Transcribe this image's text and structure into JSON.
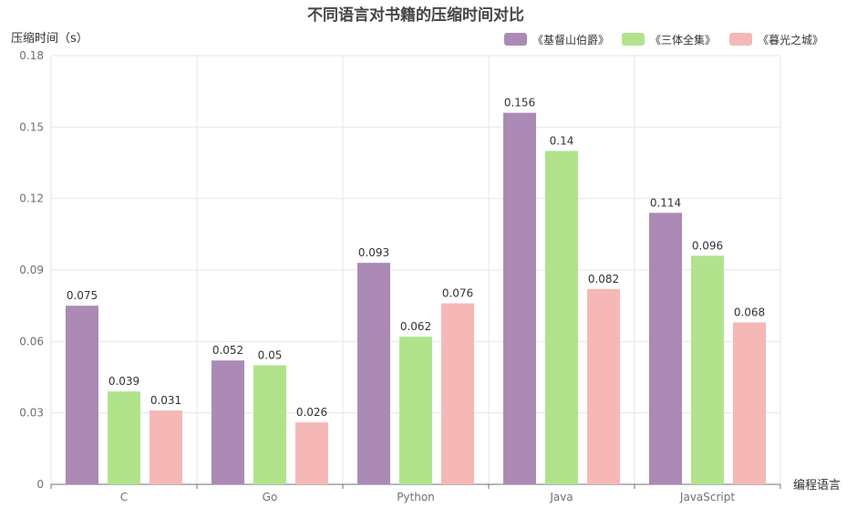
{
  "chart_data": {
    "type": "bar",
    "title": "不同语言对书籍的压缩时间对比",
    "ylabel": "压缩时间（s）",
    "xlabel": "编程语言",
    "categories": [
      "C",
      "Go",
      "Python",
      "Java",
      "JavaScript"
    ],
    "series": [
      {
        "name": "《基督山伯爵》",
        "color": "#ab8ab5",
        "values": [
          0.075,
          0.052,
          0.093,
          0.156,
          0.114
        ]
      },
      {
        "name": "《三体全集》",
        "color": "#b1e38d",
        "values": [
          0.039,
          0.05,
          0.062,
          0.14,
          0.096
        ]
      },
      {
        "name": "《暮光之城》",
        "color": "#f5b8b6",
        "values": [
          0.031,
          0.026,
          0.076,
          0.082,
          0.068
        ]
      }
    ],
    "ylim": [
      0,
      0.18
    ],
    "yticks": [
      "0",
      "0.03",
      "0.06",
      "0.09",
      "0.12",
      "0.15",
      "0.18"
    ],
    "grid": true,
    "legend_position": "top-right"
  }
}
